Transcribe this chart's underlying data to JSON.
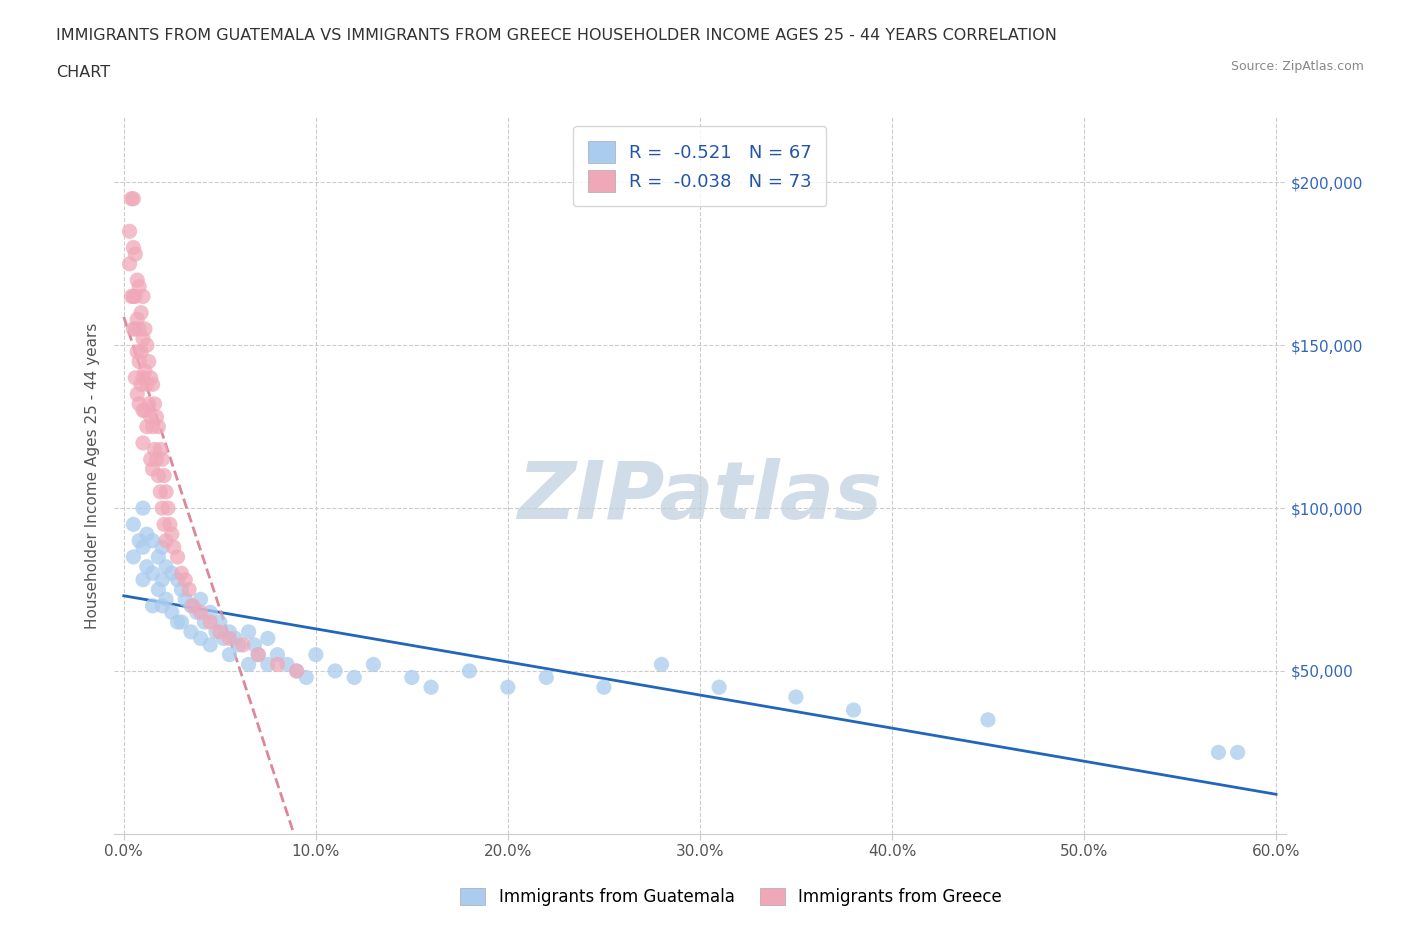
{
  "title_line1": "IMMIGRANTS FROM GUATEMALA VS IMMIGRANTS FROM GREECE HOUSEHOLDER INCOME AGES 25 - 44 YEARS CORRELATION",
  "title_line2": "CHART",
  "source": "Source: ZipAtlas.com",
  "ylabel": "Householder Income Ages 25 - 44 years",
  "xlabel_ticks": [
    "0.0%",
    "10.0%",
    "20.0%",
    "30.0%",
    "40.0%",
    "50.0%",
    "60.0%"
  ],
  "ytick_labels": [
    "$50,000",
    "$100,000",
    "$150,000",
    "$200,000"
  ],
  "ytick_values": [
    50000,
    100000,
    150000,
    200000
  ],
  "xlim": [
    -0.005,
    0.605
  ],
  "ylim": [
    0,
    220000
  ],
  "R_guatemala": -0.521,
  "N_guatemala": 67,
  "R_greece": -0.038,
  "N_greece": 73,
  "color_guatemala": "#aaccee",
  "color_greece": "#f0a8b8",
  "trendline_color_guatemala": "#2266bb",
  "trendline_color_greece": "#dd8899",
  "watermark": "ZIPatlas",
  "watermark_color": "#d0dde8",
  "guatemala_x": [
    0.005,
    0.005,
    0.008,
    0.01,
    0.01,
    0.01,
    0.012,
    0.012,
    0.015,
    0.015,
    0.015,
    0.018,
    0.018,
    0.02,
    0.02,
    0.02,
    0.022,
    0.022,
    0.025,
    0.025,
    0.028,
    0.028,
    0.03,
    0.03,
    0.032,
    0.035,
    0.035,
    0.038,
    0.04,
    0.04,
    0.042,
    0.045,
    0.045,
    0.048,
    0.05,
    0.052,
    0.055,
    0.055,
    0.058,
    0.06,
    0.065,
    0.065,
    0.068,
    0.07,
    0.075,
    0.075,
    0.08,
    0.085,
    0.09,
    0.095,
    0.1,
    0.11,
    0.12,
    0.13,
    0.15,
    0.16,
    0.18,
    0.2,
    0.22,
    0.25,
    0.28,
    0.31,
    0.35,
    0.38,
    0.45,
    0.57,
    0.58
  ],
  "guatemala_y": [
    95000,
    85000,
    90000,
    100000,
    88000,
    78000,
    92000,
    82000,
    90000,
    80000,
    70000,
    85000,
    75000,
    88000,
    78000,
    70000,
    82000,
    72000,
    80000,
    68000,
    78000,
    65000,
    75000,
    65000,
    72000,
    70000,
    62000,
    68000,
    72000,
    60000,
    65000,
    68000,
    58000,
    62000,
    65000,
    60000,
    62000,
    55000,
    60000,
    58000,
    62000,
    52000,
    58000,
    55000,
    60000,
    52000,
    55000,
    52000,
    50000,
    48000,
    55000,
    50000,
    48000,
    52000,
    48000,
    45000,
    50000,
    45000,
    48000,
    45000,
    52000,
    45000,
    42000,
    38000,
    35000,
    25000,
    25000
  ],
  "greece_x": [
    0.003,
    0.003,
    0.004,
    0.004,
    0.005,
    0.005,
    0.005,
    0.005,
    0.006,
    0.006,
    0.006,
    0.006,
    0.007,
    0.007,
    0.007,
    0.007,
    0.008,
    0.008,
    0.008,
    0.008,
    0.009,
    0.009,
    0.009,
    0.01,
    0.01,
    0.01,
    0.01,
    0.01,
    0.011,
    0.011,
    0.011,
    0.012,
    0.012,
    0.012,
    0.013,
    0.013,
    0.014,
    0.014,
    0.014,
    0.015,
    0.015,
    0.015,
    0.016,
    0.016,
    0.017,
    0.017,
    0.018,
    0.018,
    0.019,
    0.019,
    0.02,
    0.02,
    0.021,
    0.021,
    0.022,
    0.022,
    0.023,
    0.024,
    0.025,
    0.026,
    0.028,
    0.03,
    0.032,
    0.034,
    0.036,
    0.04,
    0.045,
    0.05,
    0.055,
    0.062,
    0.07,
    0.08,
    0.09
  ],
  "greece_y": [
    185000,
    175000,
    195000,
    165000,
    195000,
    180000,
    165000,
    155000,
    178000,
    165000,
    155000,
    140000,
    170000,
    158000,
    148000,
    135000,
    168000,
    155000,
    145000,
    132000,
    160000,
    148000,
    138000,
    165000,
    152000,
    140000,
    130000,
    120000,
    155000,
    142000,
    130000,
    150000,
    138000,
    125000,
    145000,
    132000,
    140000,
    128000,
    115000,
    138000,
    125000,
    112000,
    132000,
    118000,
    128000,
    115000,
    125000,
    110000,
    118000,
    105000,
    115000,
    100000,
    110000,
    95000,
    105000,
    90000,
    100000,
    95000,
    92000,
    88000,
    85000,
    80000,
    78000,
    75000,
    70000,
    68000,
    65000,
    62000,
    60000,
    58000,
    55000,
    52000,
    50000
  ]
}
